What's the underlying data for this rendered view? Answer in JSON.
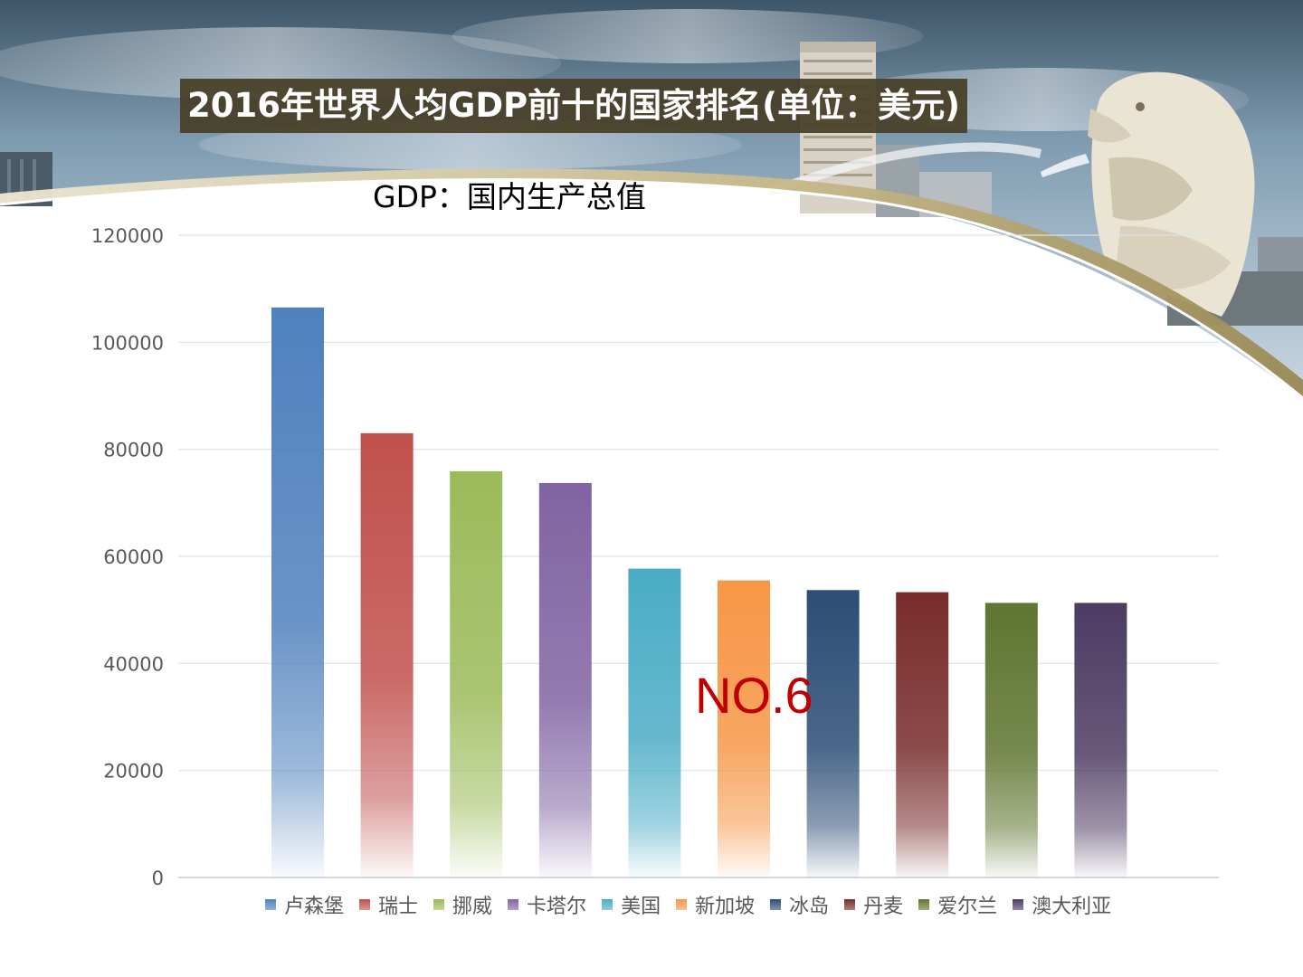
{
  "slide": {
    "title": "2016年世界人均GDP前十的国家排名(单位：美元)",
    "subtitle": "GDP：国内生产总值",
    "highlight_label": "NO.6"
  },
  "chart_data": {
    "type": "bar",
    "title": "",
    "xlabel": "",
    "ylabel": "",
    "categories": [
      "卢森堡",
      "瑞士",
      "挪威",
      "卡塔尔",
      "美国",
      "新加坡",
      "冰岛",
      "丹麦",
      "爱尔兰",
      "澳大利亚"
    ],
    "values": [
      106500,
      83000,
      75900,
      73700,
      57700,
      55500,
      53700,
      53300,
      51300,
      51300
    ],
    "colors": [
      "#4f81bd",
      "#c0504d",
      "#9bbb59",
      "#8064a2",
      "#4bacc6",
      "#f79646",
      "#2c4d75",
      "#772c2a",
      "#5f7530",
      "#4d3b62"
    ],
    "ylim": [
      0,
      120000
    ],
    "yticks": [
      0,
      20000,
      40000,
      60000,
      80000,
      100000,
      120000
    ],
    "grid": true,
    "legend": "bottom"
  }
}
